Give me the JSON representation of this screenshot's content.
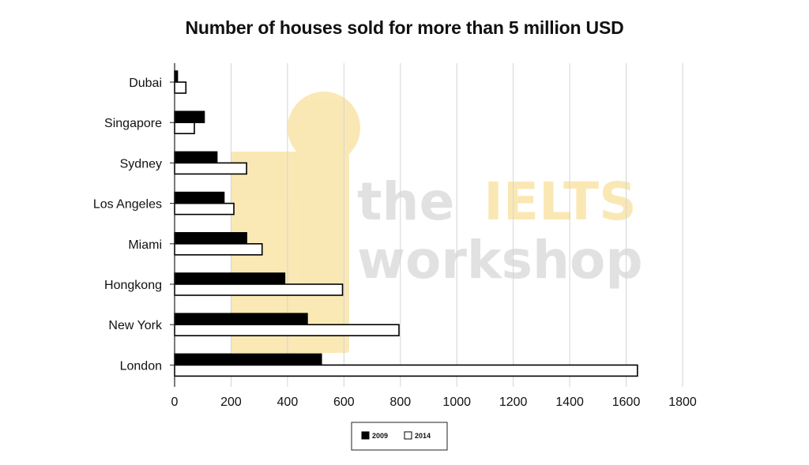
{
  "chart_data": {
    "type": "bar",
    "orientation": "horizontal",
    "title": "Number of houses sold for more than 5 million USD",
    "categories": [
      "Dubai",
      "Singapore",
      "Sydney",
      "Los Angeles",
      "Miami",
      "Hongkong",
      "New York",
      "London"
    ],
    "series": [
      {
        "name": "2009",
        "color": "#000000",
        "values": [
          10,
          105,
          150,
          175,
          255,
          390,
          470,
          520
        ]
      },
      {
        "name": "2014",
        "color": "#ffffff",
        "values": [
          40,
          70,
          255,
          210,
          310,
          595,
          795,
          1640
        ]
      }
    ],
    "xlim": [
      0,
      1800
    ],
    "xticks": [
      0,
      200,
      400,
      600,
      800,
      1000,
      1200,
      1400,
      1600,
      1800
    ],
    "grid": true,
    "legend_position": "bottom-center"
  },
  "watermark": {
    "line1_a": "the",
    "line1_b": "IELTS",
    "line2": "workshop",
    "accent_color": "#f6d778",
    "gray_color": "#c9c9c9"
  }
}
